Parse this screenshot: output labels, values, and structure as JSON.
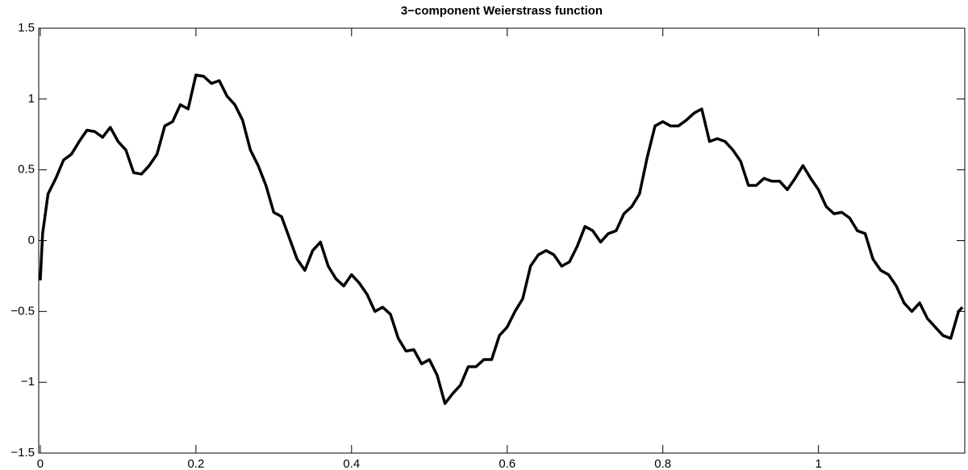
{
  "chart_data": {
    "type": "line",
    "title": "3−component Weierstrass function",
    "x": [
      0,
      0.003,
      0.01,
      0.02,
      0.03,
      0.04,
      0.05,
      0.06,
      0.07,
      0.08,
      0.09,
      0.1,
      0.11,
      0.12,
      0.13,
      0.14,
      0.15,
      0.16,
      0.17,
      0.18,
      0.19,
      0.2,
      0.21,
      0.22,
      0.23,
      0.24,
      0.25,
      0.26,
      0.27,
      0.28,
      0.29,
      0.3,
      0.31,
      0.32,
      0.33,
      0.34,
      0.35,
      0.36,
      0.37,
      0.38,
      0.39,
      0.4,
      0.41,
      0.42,
      0.43,
      0.44,
      0.45,
      0.46,
      0.47,
      0.48,
      0.49,
      0.5,
      0.51,
      0.52,
      0.53,
      0.54,
      0.55,
      0.56,
      0.57,
      0.58,
      0.59,
      0.6,
      0.61,
      0.62,
      0.63,
      0.64,
      0.65,
      0.66,
      0.67,
      0.68,
      0.69,
      0.7,
      0.71,
      0.72,
      0.73,
      0.74,
      0.75,
      0.76,
      0.77,
      0.78,
      0.79,
      0.8,
      0.81,
      0.82,
      0.83,
      0.84,
      0.85,
      0.86,
      0.87,
      0.88,
      0.89,
      0.9,
      0.91,
      0.92,
      0.93,
      0.94,
      0.95,
      0.96,
      0.97,
      0.98,
      0.99,
      1.0,
      1.01,
      1.02,
      1.03,
      1.04,
      1.05,
      1.06,
      1.07,
      1.08,
      1.09,
      1.1,
      1.11,
      1.12,
      1.13,
      1.14,
      1.15,
      1.16,
      1.17,
      1.18,
      1.185
    ],
    "series": [
      {
        "color": "#000000",
        "values": [
          -0.28,
          0.05,
          0.33,
          0.44,
          0.57,
          0.61,
          0.7,
          0.78,
          0.77,
          0.73,
          0.8,
          0.7,
          0.64,
          0.48,
          0.47,
          0.53,
          0.61,
          0.81,
          0.84,
          0.96,
          0.93,
          1.17,
          1.16,
          1.11,
          1.13,
          1.02,
          0.96,
          0.85,
          0.64,
          0.53,
          0.39,
          0.2,
          0.17,
          0.02,
          -0.13,
          -0.21,
          -0.07,
          -0.01,
          -0.18,
          -0.27,
          -0.32,
          -0.24,
          -0.3,
          -0.38,
          -0.5,
          -0.47,
          -0.52,
          -0.69,
          -0.78,
          -0.77,
          -0.87,
          -0.84,
          -0.95,
          -1.15,
          -1.08,
          -1.02,
          -0.89,
          -0.89,
          -0.84,
          -0.84,
          -0.67,
          -0.61,
          -0.5,
          -0.41,
          -0.18,
          -0.1,
          -0.07,
          -0.1,
          -0.18,
          -0.15,
          -0.04,
          0.1,
          0.07,
          -0.01,
          0.05,
          0.07,
          0.19,
          0.24,
          0.33,
          0.59,
          0.81,
          0.84,
          0.81,
          0.81,
          0.85,
          0.9,
          0.93,
          0.7,
          0.72,
          0.7,
          0.64,
          0.56,
          0.39,
          0.39,
          0.44,
          0.42,
          0.42,
          0.36,
          0.44,
          0.53,
          0.44,
          0.36,
          0.24,
          0.19,
          0.2,
          0.16,
          0.07,
          0.05,
          -0.13,
          -0.21,
          -0.24,
          -0.32,
          -0.44,
          -0.5,
          -0.44,
          -0.55,
          -0.61,
          -0.67,
          -0.69,
          -0.5,
          -0.47
        ]
      }
    ],
    "xlim": [
      -0.002,
      1.188
    ],
    "ylim": [
      -1.5,
      1.5
    ],
    "xticks": [
      0,
      0.2,
      0.4,
      0.6,
      0.8,
      1
    ],
    "yticks": [
      {
        "value": -1.5,
        "label": "−1.5"
      },
      {
        "value": -1,
        "label": "−1"
      },
      {
        "value": -0.5,
        "label": "−0.5"
      },
      0,
      0.5,
      1,
      1.5
    ],
    "grid": false
  }
}
